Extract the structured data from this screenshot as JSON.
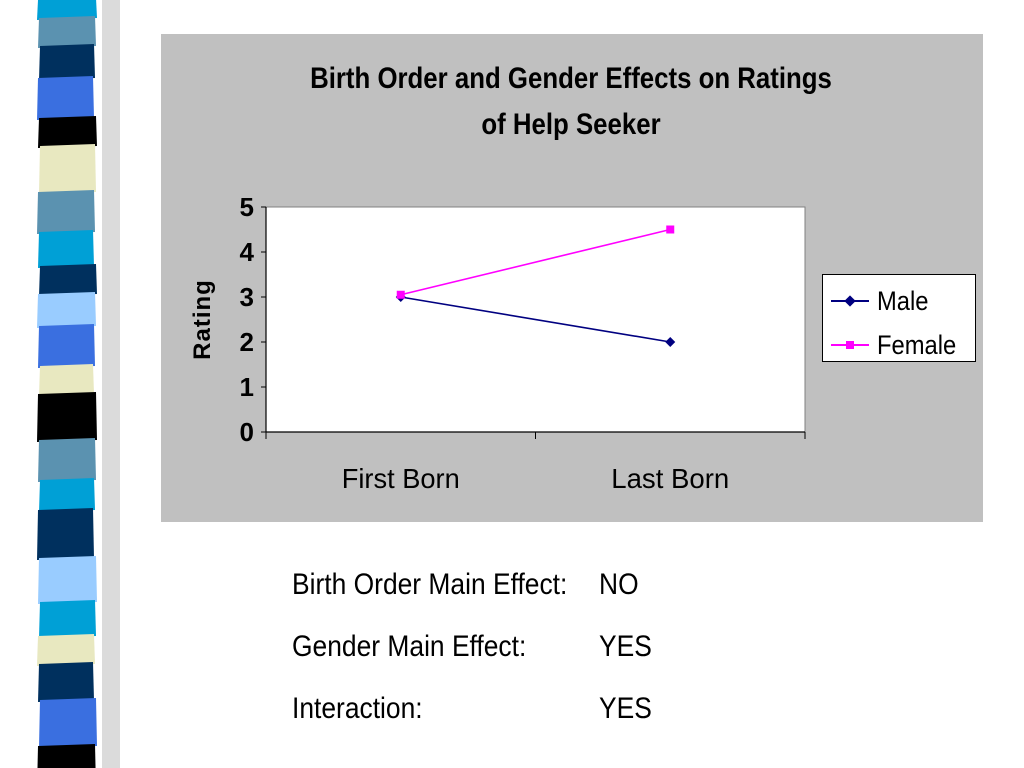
{
  "chart_data": {
    "type": "line",
    "title": "Birth Order and Gender Effects on Ratings of Help Seeker",
    "title_lines": [
      "Birth Order and Gender Effects on Ratings",
      "of Help Seeker"
    ],
    "categories": [
      "First Born",
      "Last Born"
    ],
    "ylabel": "Rating",
    "xlabel": "",
    "ylim": [
      0,
      5
    ],
    "yticks": [
      "0",
      "1",
      "2",
      "3",
      "4",
      "5"
    ],
    "grid": false,
    "legend_position": "right",
    "series": [
      {
        "name": "Male",
        "values": [
          3,
          2
        ],
        "color": "#000080",
        "marker": "diamond"
      },
      {
        "name": "Female",
        "values": [
          3.05,
          4.5
        ],
        "color": "#ff00ff",
        "marker": "square"
      }
    ]
  },
  "effects": [
    {
      "label": "Birth Order Main Effect:",
      "value": "NO"
    },
    {
      "label": "Gender Main Effect:",
      "value": "YES"
    },
    {
      "label": "Interaction:",
      "value": "YES"
    }
  ],
  "colors": {
    "panel_background": "#c0c0c0",
    "plot_background": "#ffffff",
    "male": "#000080",
    "female": "#ff00ff"
  }
}
